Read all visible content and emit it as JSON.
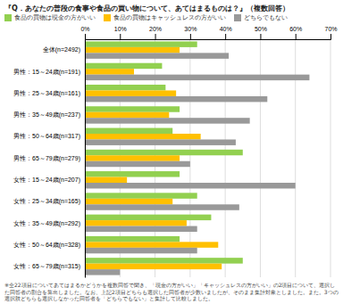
{
  "chart_data": {
    "type": "bar",
    "orientation": "horizontal",
    "title": "『Q．あなたの普段の食事や食品の買い物について、あてはまるものは？』（複数回答）",
    "categories": [
      "全体(n=2492)",
      "男性：15～24歳(n=191)",
      "男性：25～34歳(n=161)",
      "男性：35～49歳(n=237)",
      "男性：50～64歳(n=317)",
      "男性：65～79歳(n=279)",
      "女性：15～24歳(n=207)",
      "女性：25～34歳(n=165)",
      "女性：35～49歳(n=292)",
      "女性：50～64歳(n=328)",
      "女性：65～79歳(n=315)"
    ],
    "series": [
      {
        "name": "食品の買物は現金の方がいい",
        "color": "#92d050",
        "values": [
          32,
          22,
          23,
          27,
          25,
          45,
          27,
          32,
          36,
          27,
          45
        ]
      },
      {
        "name": "食品の買物はキャッシュレスの方がいい",
        "color": "#ffc000",
        "values": [
          27,
          14,
          26,
          24,
          33,
          27,
          12,
          25,
          29,
          38,
          39
        ]
      },
      {
        "name": "どちらでもない",
        "color": "#999999",
        "values": [
          41,
          64,
          52,
          47,
          43,
          30,
          60,
          44,
          32,
          32,
          10
        ]
      }
    ],
    "xlim": [
      0,
      70
    ],
    "xticks": [
      {
        "value": 0,
        "label": "0%"
      },
      {
        "value": 10,
        "label": "10%"
      },
      {
        "value": 20,
        "label": "20%"
      },
      {
        "value": 30,
        "label": "30%"
      },
      {
        "value": 40,
        "label": "40%"
      },
      {
        "value": 50,
        "label": "50%"
      },
      {
        "value": 60,
        "label": "60%"
      },
      {
        "value": 70,
        "label": "70%"
      }
    ],
    "grid": true,
    "legend": "top-left",
    "annotations": [
      "※全22項目についてあてはまるかどうかを複数回答で聞き、「現金の方がいい」「キャッシュレスの方がいい」の2項目について、選択した回答者の割合を算出しました。なお、上記2項目どちらも選択した回答者が少数いましたが、そのまま集計対象としました。また。3つの選択肢どちらも選択しなかった回答者を「どちらでもない」と集計して比較しました。"
    ]
  }
}
